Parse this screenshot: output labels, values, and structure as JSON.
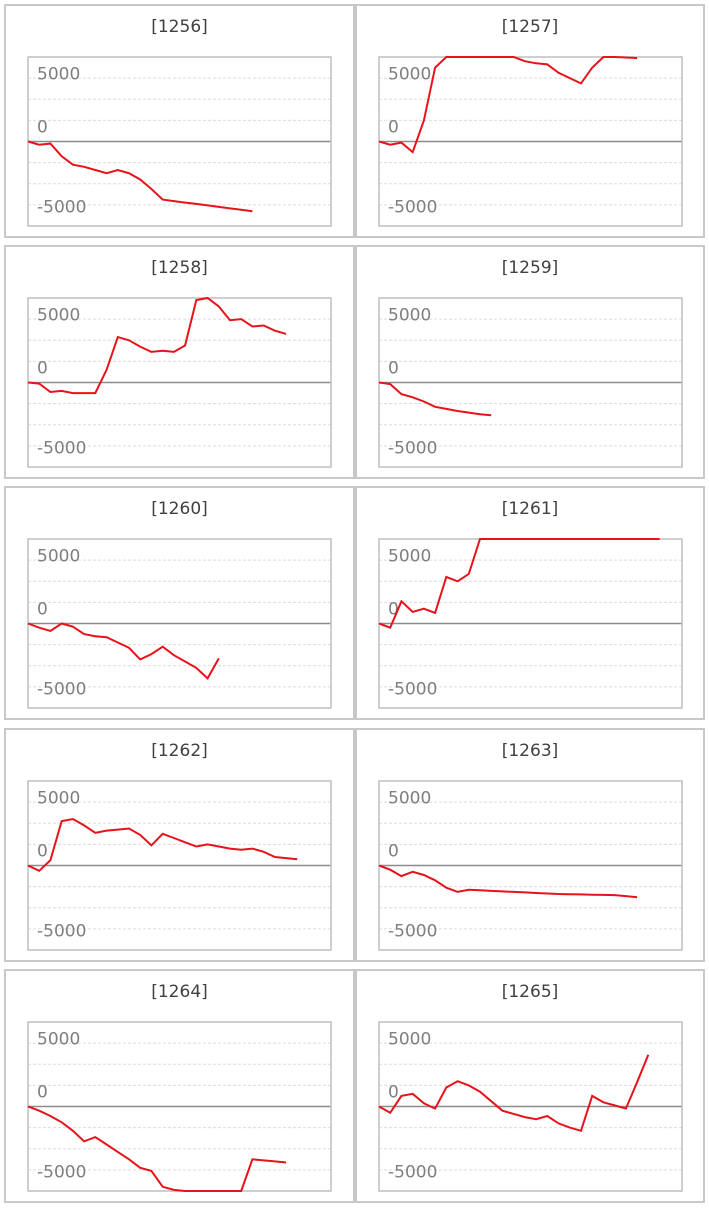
{
  "chart_data": [
    {
      "type": "line",
      "title": "[1256]",
      "color": "#e8121a",
      "ylim": [
        -8000,
        8000
      ],
      "xlim": [
        0,
        27
      ],
      "yticks": [
        5000,
        0,
        -5000
      ],
      "ygrid": [
        -8000,
        -6000,
        -4000,
        -2000,
        0,
        2000,
        4000,
        6000,
        8000
      ],
      "grid": true,
      "values": [
        0,
        -300,
        -200,
        -1400,
        -2200,
        -2400,
        -2700,
        -3000,
        -2700,
        -3000,
        -3600,
        -4500,
        -5500,
        -5640,
        -5780,
        -5910,
        -6050,
        -6190,
        -6330,
        -6460,
        -6600
      ]
    },
    {
      "type": "line",
      "title": "[1257]",
      "color": "#e8121a",
      "ylim": [
        -8000,
        8000
      ],
      "xlim": [
        0,
        27
      ],
      "yticks": [
        5000,
        0,
        -5000
      ],
      "ygrid": [
        -8000,
        -6000,
        -4000,
        -2000,
        0,
        2000,
        4000,
        6000,
        8000
      ],
      "grid": true,
      "values": [
        0,
        -300,
        -100,
        -1000,
        2000,
        7000,
        8000,
        8000,
        8000,
        8000,
        8000,
        8000,
        8000,
        7600,
        7400,
        7300,
        6500,
        6000,
        5500,
        7000,
        8000,
        8000,
        7950,
        7900
      ]
    },
    {
      "type": "line",
      "title": "[1258]",
      "color": "#e8121a",
      "ylim": [
        -8000,
        8000
      ],
      "xlim": [
        0,
        27
      ],
      "yticks": [
        5000,
        0,
        -5000
      ],
      "ygrid": [
        -8000,
        -6000,
        -4000,
        -2000,
        0,
        2000,
        4000,
        6000,
        8000
      ],
      "grid": true,
      "values": [
        0,
        -100,
        -900,
        -800,
        -1000,
        -1000,
        -1000,
        1200,
        4300,
        4000,
        3400,
        2900,
        3000,
        2900,
        3500,
        7800,
        8000,
        7200,
        5900,
        6000,
        5300,
        5400,
        4900,
        4600
      ]
    },
    {
      "type": "line",
      "title": "[1259]",
      "color": "#e8121a",
      "ylim": [
        -8000,
        8000
      ],
      "xlim": [
        0,
        27
      ],
      "yticks": [
        5000,
        0,
        -5000
      ],
      "ygrid": [
        -8000,
        -6000,
        -4000,
        -2000,
        0,
        2000,
        4000,
        6000,
        8000
      ],
      "grid": true,
      "values": [
        0,
        -150,
        -1100,
        -1400,
        -1800,
        -2300,
        -2500,
        -2700,
        -2850,
        -3000,
        -3100
      ]
    },
    {
      "type": "line",
      "title": "[1260]",
      "color": "#e8121a",
      "ylim": [
        -8000,
        8000
      ],
      "xlim": [
        0,
        27
      ],
      "yticks": [
        5000,
        0,
        -5000
      ],
      "ygrid": [
        -8000,
        -6000,
        -4000,
        -2000,
        0,
        2000,
        4000,
        6000,
        8000
      ],
      "grid": true,
      "values": [
        0,
        -400,
        -700,
        0,
        -300,
        -1000,
        -1200,
        -1300,
        -1800,
        -2300,
        -3400,
        -2900,
        -2200,
        -3000,
        -3600,
        -4200,
        -5200,
        -3300
      ]
    },
    {
      "type": "line",
      "title": "[1261]",
      "color": "#e8121a",
      "ylim": [
        -8000,
        8000
      ],
      "xlim": [
        0,
        27
      ],
      "yticks": [
        5000,
        0,
        -5000
      ],
      "ygrid": [
        -8000,
        -6000,
        -4000,
        -2000,
        0,
        2000,
        4000,
        6000,
        8000
      ],
      "grid": true,
      "values": [
        0,
        -400,
        2100,
        1100,
        1400,
        1000,
        4400,
        4000,
        4700,
        8000,
        8000,
        8000,
        8000,
        8000,
        8000,
        8000,
        8000,
        8000,
        8000,
        8000,
        8000,
        8000,
        8000,
        8000,
        8000,
        8000
      ]
    },
    {
      "type": "line",
      "title": "[1262]",
      "color": "#e8121a",
      "ylim": [
        -8000,
        8000
      ],
      "xlim": [
        0,
        27
      ],
      "yticks": [
        5000,
        0,
        -5000
      ],
      "ygrid": [
        -8000,
        -6000,
        -4000,
        -2000,
        0,
        2000,
        4000,
        6000,
        8000
      ],
      "grid": true,
      "values": [
        0,
        -500,
        500,
        4200,
        4400,
        3800,
        3100,
        3300,
        3400,
        3500,
        2900,
        1900,
        3000,
        2600,
        2200,
        1800,
        2000,
        1800,
        1600,
        1500,
        1600,
        1300,
        800,
        700,
        600
      ]
    },
    {
      "type": "line",
      "title": "[1263]",
      "color": "#e8121a",
      "ylim": [
        -8000,
        8000
      ],
      "xlim": [
        0,
        27
      ],
      "yticks": [
        5000,
        0,
        -5000
      ],
      "ygrid": [
        -8000,
        -6000,
        -4000,
        -2000,
        0,
        2000,
        4000,
        6000,
        8000
      ],
      "grid": true,
      "values": [
        0,
        -400,
        -1000,
        -600,
        -900,
        -1400,
        -2100,
        -2500,
        -2300,
        -2350,
        -2400,
        -2450,
        -2500,
        -2550,
        -2600,
        -2650,
        -2700,
        -2720,
        -2740,
        -2760,
        -2780,
        -2800,
        -2900,
        -3000
      ]
    },
    {
      "type": "line",
      "title": "[1264]",
      "color": "#e8121a",
      "ylim": [
        -8000,
        8000
      ],
      "xlim": [
        0,
        27
      ],
      "yticks": [
        5000,
        0,
        -5000
      ],
      "ygrid": [
        -8000,
        -6000,
        -4000,
        -2000,
        0,
        2000,
        4000,
        6000,
        8000
      ],
      "grid": true,
      "values": [
        0,
        -400,
        -900,
        -1500,
        -2300,
        -3300,
        -2900,
        -3600,
        -4300,
        -5000,
        -5800,
        -6100,
        -7600,
        -7900,
        -8000,
        -8000,
        -8000,
        -8000,
        -8000,
        -8000,
        -5000,
        -5100,
        -5200,
        -5300
      ]
    },
    {
      "type": "line",
      "title": "[1265]",
      "color": "#e8121a",
      "ylim": [
        -8000,
        8000
      ],
      "xlim": [
        0,
        27
      ],
      "yticks": [
        5000,
        0,
        -5000
      ],
      "ygrid": [
        -8000,
        -6000,
        -4000,
        -2000,
        0,
        2000,
        4000,
        6000,
        8000
      ],
      "grid": true,
      "values": [
        0,
        -600,
        1000,
        1200,
        300,
        -200,
        1800,
        2400,
        2000,
        1400,
        500,
        -400,
        -700,
        -1000,
        -1200,
        -900,
        -1600,
        -2000,
        -2300,
        1000,
        400,
        100,
        -200,
        2300,
        4900
      ]
    }
  ]
}
